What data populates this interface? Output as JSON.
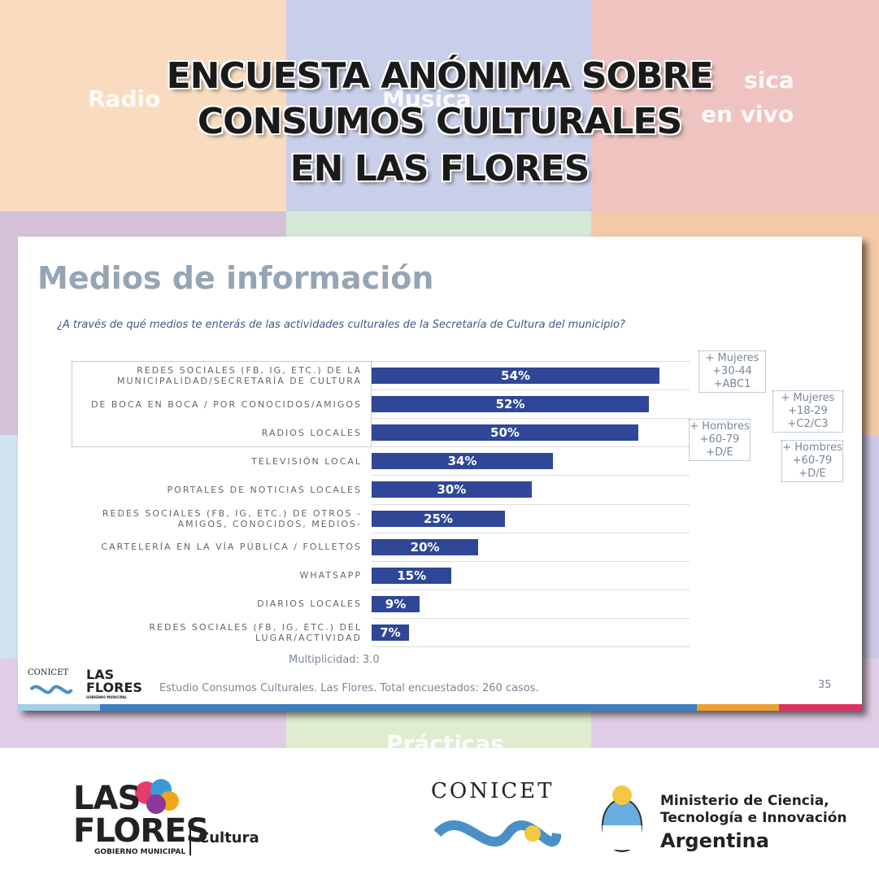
{
  "header": {
    "title_lines": [
      "ENCUESTA ANÓNIMA SOBRE",
      "CONSUMOS CULTURALES",
      "EN LAS FLORES"
    ],
    "background_words": [
      "Radio",
      "Musica",
      "sica",
      "en vivo",
      "Prácticas"
    ]
  },
  "slide": {
    "title": "Medios de información",
    "question": "¿A través de qué medios te enterás de las actividades culturales de la Secretaría de Cultura del municipio?",
    "multiplicity": "Multiplicidad: 3.0",
    "source": "Estudio Consumos Culturales. Las Flores. Total encuestados: 260 casos.",
    "page_number": "35",
    "annotations": [
      [
        "+ Mujeres",
        "+30-44",
        "+ABC1"
      ],
      [
        "+ Mujeres",
        "+18-29",
        "+C2/C3"
      ],
      [
        "+ Hombres",
        "+60-79",
        "+D/E"
      ],
      [
        "+ Hombres",
        "+60-79",
        "+D/E"
      ]
    ],
    "logos": [
      "CONICET",
      "LAS",
      "FLORES",
      "GOBIERNO MUNICIPAL"
    ]
  },
  "chart_data": {
    "type": "bar",
    "orientation": "horizontal",
    "color": "#2f4796",
    "categories": [
      "REDES SOCIALES (FB, IG, ETC.) DE LA MUNICIPALIDAD/SECRETARÍA DE CULTURA",
      "DE BOCA EN BOCA / POR CONOCIDOS/AMIGOS",
      "RADIOS LOCALES",
      "TELEVISIÓN LOCAL",
      "PORTALES DE NOTICIAS LOCALES",
      "REDES SOCIALES (FB, IG, ETC.) DE OTROS -AMIGOS, CONOCIDOS, MEDIOS-",
      "CARTELERÍA EN LA VÍA PÚBLICA / FOLLETOS",
      "WHATSAPP",
      "DIARIOS LOCALES",
      "REDES SOCIALES (FB, IG, ETC.) DEL LUGAR/ACTIVIDAD"
    ],
    "values": [
      54,
      52,
      50,
      34,
      30,
      25,
      20,
      15,
      9,
      7
    ],
    "value_labels": [
      "54%",
      "52%",
      "50%",
      "34%",
      "30%",
      "25%",
      "20%",
      "15%",
      "9%",
      "7%"
    ]
  },
  "footer": {
    "las": "LAS",
    "flores": "FLORES",
    "gobierno": "GOBIERNO MUNICIPAL",
    "cultura": "Cultura",
    "conicet": "CONICET",
    "ministry_lines": [
      "Ministerio de Ciencia,",
      "Tecnología e Innovación",
      "Argentina"
    ]
  }
}
